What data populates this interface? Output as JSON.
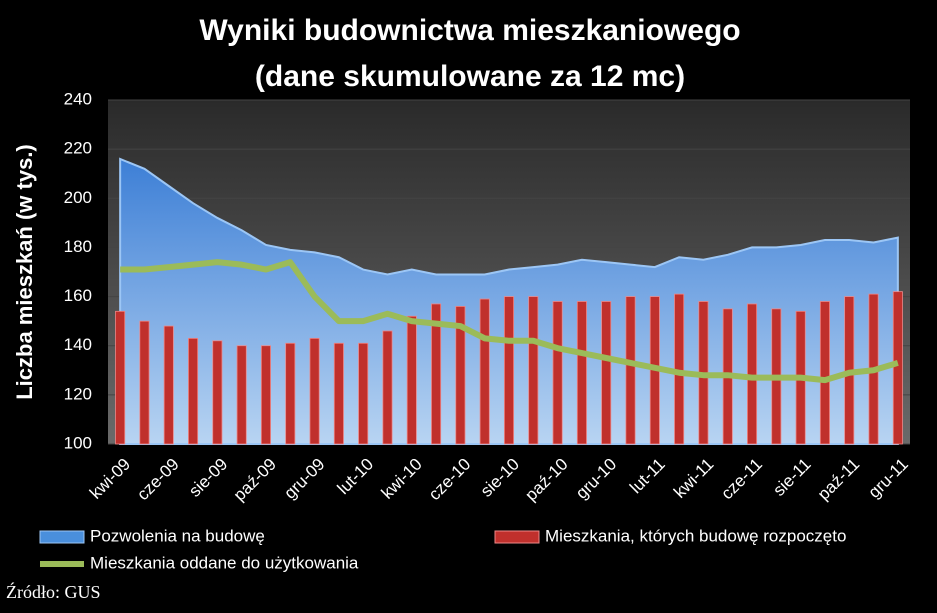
{
  "chart_data": {
    "type": "combo",
    "title": "Wyniki budownictwa mieszkaniowego",
    "subtitle": "(dane skumulowane za 12 mc)",
    "y_label": "Liczba mieszkań (w tys.)",
    "source": "Źródło: GUS",
    "categories": [
      "kwi-09",
      null,
      "cze-09",
      null,
      "sie-09",
      null,
      "paź-09",
      null,
      "gru-09",
      null,
      "lut-10",
      null,
      "kwi-10",
      null,
      "cze-10",
      null,
      "sie-10",
      null,
      "paź-10",
      null,
      "gru-10",
      null,
      "lut-11",
      null,
      "kwi-11",
      null,
      "cze-11",
      null,
      "sie-11",
      null,
      "paź-11",
      null,
      "gru-11"
    ],
    "ylim": [
      100,
      240
    ],
    "yticks": [
      100,
      120,
      140,
      160,
      180,
      200,
      220,
      240
    ],
    "grid": true,
    "series": [
      {
        "name": "Pozwolenia na budowę",
        "type": "area",
        "color": "#4a8fdc",
        "values": [
          216,
          212,
          205,
          198,
          192,
          187,
          181,
          179,
          178,
          176,
          171,
          169,
          171,
          169,
          169,
          169,
          171,
          172,
          173,
          175,
          174,
          173,
          172,
          176,
          175,
          177,
          180,
          180,
          181,
          183,
          183,
          182,
          184
        ]
      },
      {
        "name": "Mieszkania, których budowę rozpoczęto",
        "type": "bar",
        "color": "#c0302c",
        "values": [
          154,
          150,
          148,
          143,
          142,
          140,
          140,
          141,
          143,
          141,
          141,
          146,
          152,
          157,
          156,
          159,
          160,
          160,
          158,
          158,
          158,
          160,
          160,
          161,
          158,
          155,
          157,
          155,
          154,
          158,
          160,
          161,
          162
        ]
      },
      {
        "name": "Mieszkania oddane do użytkowania",
        "type": "line",
        "color": "#9bbb59",
        "values": [
          171,
          171,
          172,
          173,
          174,
          173,
          171,
          174,
          160,
          150,
          150,
          153,
          150,
          149,
          148,
          143,
          142,
          142,
          139,
          137,
          135,
          133,
          131,
          129,
          128,
          128,
          127,
          127,
          127,
          126,
          129,
          130,
          133
        ]
      }
    ]
  }
}
